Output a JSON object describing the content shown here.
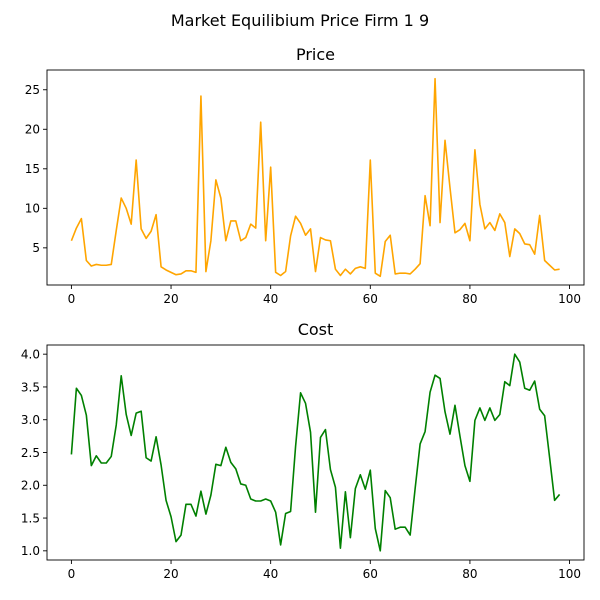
{
  "suptitle": "Market Equilibium Price Firm 1 9",
  "chart_data": [
    {
      "type": "line",
      "title": "Price",
      "xlabel": "",
      "ylabel": "",
      "xlim": [
        -4.9,
        102.9
      ],
      "ylim": [
        0.3,
        27.5
      ],
      "xticks": [
        0,
        20,
        40,
        60,
        80,
        100
      ],
      "yticks": [
        5,
        10,
        15,
        20,
        25
      ],
      "grid": false,
      "color": "#ffa500",
      "series": [
        {
          "x": [
            0,
            1,
            2,
            3,
            4,
            5,
            6,
            7,
            8,
            9,
            10,
            11,
            12,
            13,
            14,
            15,
            16,
            17,
            18,
            19,
            20,
            21,
            22,
            23,
            24,
            25,
            26,
            27,
            28,
            29,
            30,
            31,
            32,
            33,
            34,
            35,
            36,
            37,
            38,
            39,
            40,
            41,
            42,
            43,
            44,
            45,
            46,
            47,
            48,
            49,
            50,
            51,
            52,
            53,
            54,
            55,
            56,
            57,
            58,
            59,
            60,
            61,
            62,
            63,
            64,
            65,
            66,
            67,
            68,
            69,
            70,
            71,
            72,
            73,
            74,
            75,
            76,
            77,
            78,
            79,
            80,
            81,
            82,
            83,
            84,
            85,
            86,
            87,
            88,
            89,
            90,
            91,
            92,
            93,
            94,
            95,
            96,
            97,
            98
          ],
          "values": [
            5.9,
            7.5,
            8.7,
            3.4,
            2.7,
            2.9,
            2.8,
            2.8,
            2.9,
            7.2,
            11.3,
            10.0,
            8.0,
            16.1,
            7.4,
            6.2,
            7.1,
            9.2,
            2.6,
            2.2,
            1.9,
            1.6,
            1.7,
            2.1,
            2.1,
            1.9,
            24.2,
            2.0,
            5.9,
            13.6,
            11.3,
            5.9,
            8.4,
            8.4,
            5.9,
            6.3,
            8.0,
            7.5,
            20.9,
            5.9,
            15.2,
            1.9,
            1.5,
            2.0,
            6.5,
            9.0,
            8.1,
            6.6,
            7.4,
            2.0,
            6.3,
            6.0,
            5.9,
            2.3,
            1.5,
            2.3,
            1.7,
            2.4,
            2.6,
            2.4,
            16.1,
            1.8,
            1.4,
            5.8,
            6.6,
            1.7,
            1.8,
            1.8,
            1.7,
            2.3,
            3.0,
            11.6,
            7.8,
            26.4,
            8.2,
            18.6,
            12.6,
            6.9,
            7.3,
            8.1,
            5.9,
            17.4,
            10.5,
            7.4,
            8.2,
            7.2,
            9.3,
            8.2,
            3.9,
            7.4,
            6.8,
            5.5,
            5.4,
            4.2,
            9.1,
            3.4,
            2.8,
            2.2,
            2.3
          ]
        }
      ]
    },
    {
      "type": "line",
      "title": "Cost",
      "xlabel": "",
      "ylabel": "",
      "xlim": [
        -4.9,
        102.9
      ],
      "ylim": [
        0.86,
        4.14
      ],
      "xticks": [
        0,
        20,
        40,
        60,
        80,
        100
      ],
      "yticks": [
        1.0,
        1.5,
        2.0,
        2.5,
        3.0,
        3.5,
        4.0
      ],
      "ytick_labels": [
        "1.0",
        "1.5",
        "2.0",
        "2.5",
        "3.0",
        "3.5",
        "4.0"
      ],
      "grid": false,
      "color": "#008000",
      "series": [
        {
          "x": [
            0,
            1,
            2,
            3,
            4,
            5,
            6,
            7,
            8,
            9,
            10,
            11,
            12,
            13,
            14,
            15,
            16,
            17,
            18,
            19,
            20,
            21,
            22,
            23,
            24,
            25,
            26,
            27,
            28,
            29,
            30,
            31,
            32,
            33,
            34,
            35,
            36,
            37,
            38,
            39,
            40,
            41,
            42,
            43,
            44,
            45,
            46,
            47,
            48,
            49,
            50,
            51,
            52,
            53,
            54,
            55,
            56,
            57,
            58,
            59,
            60,
            61,
            62,
            63,
            64,
            65,
            66,
            67,
            68,
            69,
            70,
            71,
            72,
            73,
            74,
            75,
            76,
            77,
            78,
            79,
            80,
            81,
            82,
            83,
            84,
            85,
            86,
            87,
            88,
            89,
            90,
            91,
            92,
            93,
            94,
            95,
            96,
            97,
            98
          ],
          "values": [
            2.47,
            3.48,
            3.37,
            3.07,
            2.3,
            2.45,
            2.34,
            2.34,
            2.44,
            2.92,
            3.67,
            3.08,
            2.76,
            3.1,
            3.13,
            2.42,
            2.37,
            2.74,
            2.31,
            1.77,
            1.52,
            1.14,
            1.24,
            1.71,
            1.71,
            1.53,
            1.91,
            1.56,
            1.85,
            2.32,
            2.3,
            2.58,
            2.35,
            2.25,
            2.02,
            2.0,
            1.79,
            1.76,
            1.76,
            1.79,
            1.76,
            1.59,
            1.09,
            1.57,
            1.6,
            2.59,
            3.41,
            3.25,
            2.81,
            1.59,
            2.73,
            2.85,
            2.24,
            1.97,
            1.04,
            1.9,
            1.2,
            1.95,
            2.16,
            1.94,
            2.23,
            1.34,
            1.0,
            1.92,
            1.81,
            1.33,
            1.36,
            1.36,
            1.24,
            1.95,
            2.63,
            2.82,
            3.42,
            3.68,
            3.63,
            3.12,
            2.78,
            3.22,
            2.75,
            2.3,
            2.06,
            2.99,
            3.18,
            2.99,
            3.18,
            2.99,
            3.08,
            3.58,
            3.52,
            4.0,
            3.88,
            3.48,
            3.45,
            3.59,
            3.16,
            3.06,
            2.42,
            1.77,
            1.86
          ]
        }
      ]
    }
  ]
}
